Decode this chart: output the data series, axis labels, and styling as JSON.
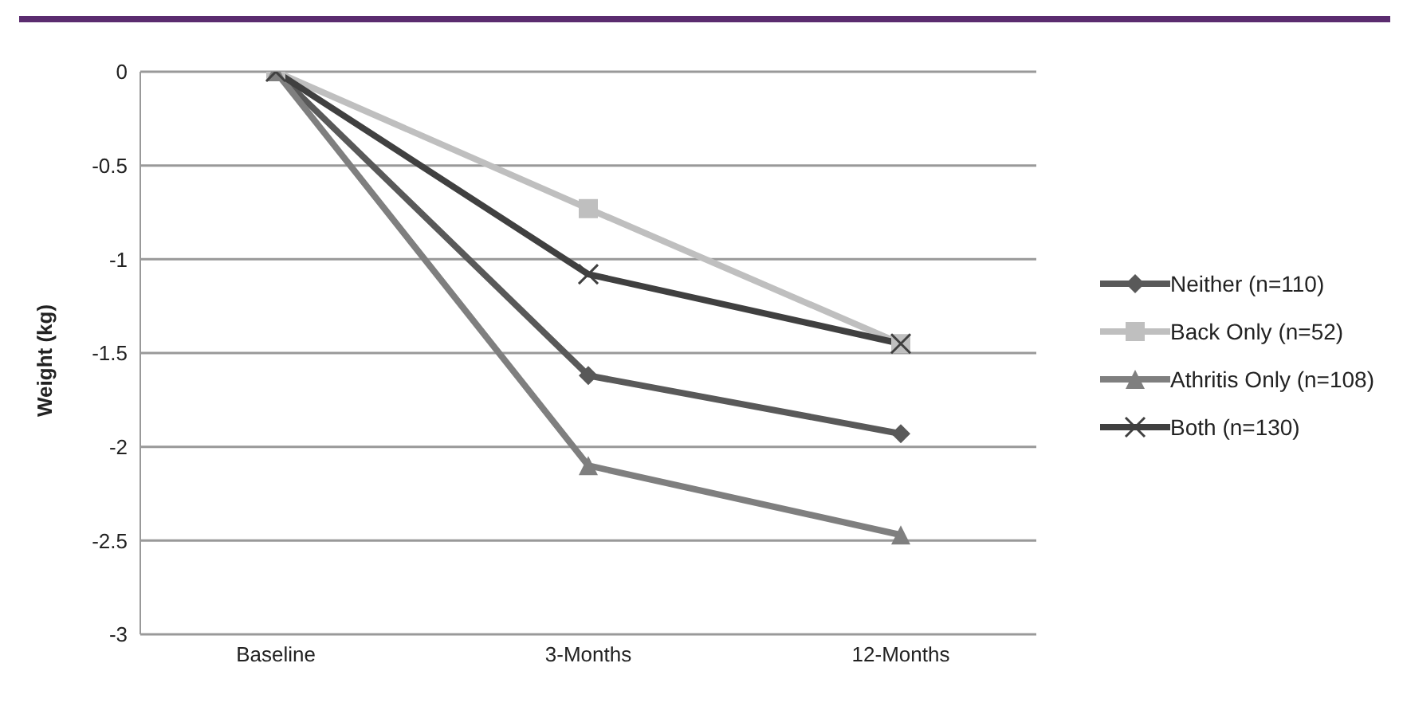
{
  "chart_data": {
    "type": "line",
    "ylabel": "Weight (kg)",
    "categories": [
      "Baseline",
      "3-Months",
      "12-Months"
    ],
    "series": [
      {
        "name": "Neither (n=110)",
        "color": "#595959",
        "marker": "diamond",
        "values": [
          0,
          -1.62,
          -1.93
        ]
      },
      {
        "name": "Back Only (n=52)",
        "color": "#bfbfbf",
        "marker": "square",
        "values": [
          0,
          -0.73,
          -1.45
        ]
      },
      {
        "name": "Athritis Only (n=108)",
        "color": "#7f7f7f",
        "marker": "triangle",
        "values": [
          0,
          -2.1,
          -2.47
        ]
      },
      {
        "name": "Both (n=130)",
        "color": "#404040",
        "marker": "cross",
        "values": [
          0,
          -1.08,
          -1.45
        ]
      }
    ],
    "ylim": [
      -3,
      0
    ],
    "yticks": [
      0,
      -0.5,
      -1,
      -1.5,
      -2,
      -2.5,
      -3
    ],
    "grid": "y",
    "legend": "right"
  }
}
